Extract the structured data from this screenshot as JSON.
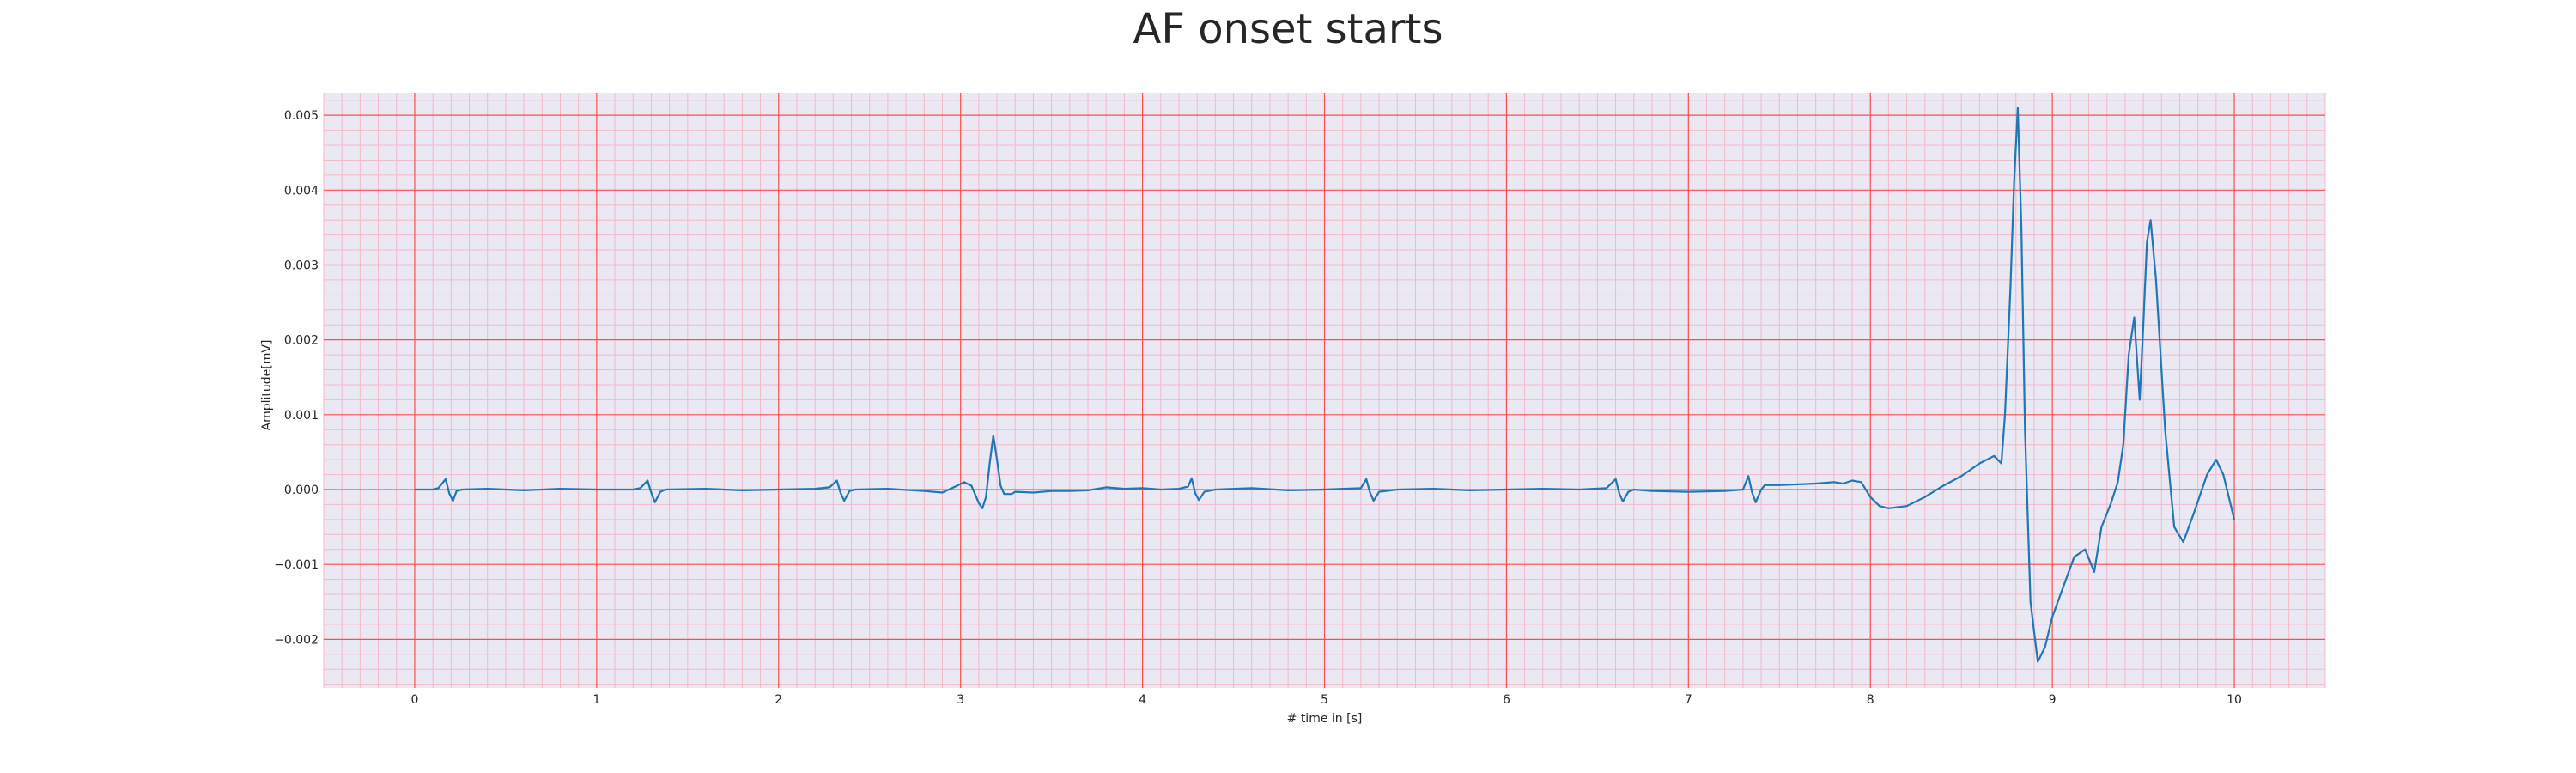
{
  "chart_data": {
    "type": "line",
    "title": "AF onset starts",
    "xlabel": "# time in [s]",
    "ylabel": "Amplitude[mV]",
    "xlim": [
      -0.5,
      10.5
    ],
    "ylim": [
      -0.00265,
      0.0053
    ],
    "x_ticks": [
      0,
      1,
      2,
      3,
      4,
      5,
      6,
      7,
      8,
      9,
      10
    ],
    "x_tick_labels": [
      "0",
      "1",
      "2",
      "3",
      "4",
      "5",
      "6",
      "7",
      "8",
      "9",
      "10"
    ],
    "y_ticks": [
      -0.002,
      -0.001,
      0.0,
      0.001,
      0.002,
      0.003,
      0.004,
      0.005
    ],
    "y_tick_labels": [
      "−0.002",
      "−0.001",
      "0.000",
      "0.001",
      "0.002",
      "0.003",
      "0.004",
      "0.005"
    ],
    "grid": {
      "major": true,
      "minor": true,
      "major_color": "#ff4d4d",
      "minor_color": "#f5b8c8"
    },
    "background": "#eae8f2",
    "series": [
      {
        "color": "#1f77b4",
        "points": [
          [
            0.0,
            0.0
          ],
          [
            0.1,
            0.0
          ],
          [
            0.13,
            2e-05
          ],
          [
            0.17,
            0.00014
          ],
          [
            0.19,
            -5e-05
          ],
          [
            0.21,
            -0.00015
          ],
          [
            0.23,
            -2e-05
          ],
          [
            0.26,
            0.0
          ],
          [
            0.4,
            1e-05
          ],
          [
            0.6,
            -1e-05
          ],
          [
            0.8,
            1e-05
          ],
          [
            1.0,
            0.0
          ],
          [
            1.2,
            0.0
          ],
          [
            1.24,
            2e-05
          ],
          [
            1.28,
            0.00012
          ],
          [
            1.3,
            -4e-05
          ],
          [
            1.32,
            -0.00017
          ],
          [
            1.35,
            -3e-05
          ],
          [
            1.38,
            0.0
          ],
          [
            1.6,
            1e-05
          ],
          [
            1.8,
            -1e-05
          ],
          [
            2.0,
            0.0
          ],
          [
            2.2,
            1e-05
          ],
          [
            2.28,
            3e-05
          ],
          [
            2.32,
            0.00012
          ],
          [
            2.34,
            -4e-05
          ],
          [
            2.36,
            -0.00015
          ],
          [
            2.39,
            -2e-05
          ],
          [
            2.42,
            0.0
          ],
          [
            2.6,
            1e-05
          ],
          [
            2.8,
            -2e-05
          ],
          [
            2.9,
            -4e-05
          ],
          [
            2.98,
            5e-05
          ],
          [
            3.02,
            0.0001
          ],
          [
            3.06,
            5e-05
          ],
          [
            3.1,
            -0.00018
          ],
          [
            3.12,
            -0.00025
          ],
          [
            3.14,
            -0.0001
          ],
          [
            3.16,
            0.00035
          ],
          [
            3.18,
            0.00072
          ],
          [
            3.2,
            0.0004
          ],
          [
            3.22,
            5e-05
          ],
          [
            3.24,
            -6e-05
          ],
          [
            3.28,
            -6e-05
          ],
          [
            3.3,
            -3e-05
          ],
          [
            3.4,
            -4e-05
          ],
          [
            3.5,
            -2e-05
          ],
          [
            3.6,
            -2e-05
          ],
          [
            3.7,
            -1e-05
          ],
          [
            3.8,
            3e-05
          ],
          [
            3.9,
            1e-05
          ],
          [
            4.0,
            2e-05
          ],
          [
            4.1,
            0.0
          ],
          [
            4.2,
            1e-05
          ],
          [
            4.25,
            4e-05
          ],
          [
            4.27,
            0.00015
          ],
          [
            4.29,
            -5e-05
          ],
          [
            4.31,
            -0.00014
          ],
          [
            4.34,
            -3e-05
          ],
          [
            4.4,
            0.0
          ],
          [
            4.6,
            2e-05
          ],
          [
            4.8,
            -1e-05
          ],
          [
            5.0,
            0.0
          ],
          [
            5.2,
            2e-05
          ],
          [
            5.23,
            0.00014
          ],
          [
            5.25,
            -4e-05
          ],
          [
            5.27,
            -0.00015
          ],
          [
            5.3,
            -3e-05
          ],
          [
            5.4,
            0.0
          ],
          [
            5.6,
            1e-05
          ],
          [
            5.8,
            -1e-05
          ],
          [
            6.0,
            0.0
          ],
          [
            6.2,
            1e-05
          ],
          [
            6.4,
            0.0
          ],
          [
            6.55,
            2e-05
          ],
          [
            6.6,
            0.00014
          ],
          [
            6.62,
            -5e-05
          ],
          [
            6.64,
            -0.00016
          ],
          [
            6.67,
            -3e-05
          ],
          [
            6.7,
            0.0
          ],
          [
            6.8,
            -2e-05
          ],
          [
            7.0,
            -3e-05
          ],
          [
            7.2,
            -2e-05
          ],
          [
            7.3,
            0.0
          ],
          [
            7.33,
            0.00018
          ],
          [
            7.35,
            -4e-05
          ],
          [
            7.37,
            -0.00017
          ],
          [
            7.4,
            0.0
          ],
          [
            7.42,
            6e-05
          ],
          [
            7.5,
            6e-05
          ],
          [
            7.7,
            8e-05
          ],
          [
            7.8,
            0.0001
          ],
          [
            7.85,
            8e-05
          ],
          [
            7.9,
            0.00012
          ],
          [
            7.95,
            0.0001
          ],
          [
            8.0,
            -0.0001
          ],
          [
            8.05,
            -0.00022
          ],
          [
            8.1,
            -0.00025
          ],
          [
            8.2,
            -0.00022
          ],
          [
            8.3,
            -0.0001
          ],
          [
            8.4,
            5e-05
          ],
          [
            8.5,
            0.00018
          ],
          [
            8.6,
            0.00035
          ],
          [
            8.68,
            0.00045
          ],
          [
            8.72,
            0.00035
          ],
          [
            8.74,
            0.001
          ],
          [
            8.77,
            0.0027
          ],
          [
            8.79,
            0.0041
          ],
          [
            8.81,
            0.0051
          ],
          [
            8.83,
            0.0035
          ],
          [
            8.85,
            0.0008
          ],
          [
            8.88,
            -0.0015
          ],
          [
            8.92,
            -0.0023
          ],
          [
            8.96,
            -0.0021
          ],
          [
            9.0,
            -0.0017
          ],
          [
            9.06,
            -0.0013
          ],
          [
            9.12,
            -0.0009
          ],
          [
            9.18,
            -0.0008
          ],
          [
            9.23,
            -0.0011
          ],
          [
            9.27,
            -0.0005
          ],
          [
            9.32,
            -0.0002
          ],
          [
            9.36,
            0.0001
          ],
          [
            9.39,
            0.0006
          ],
          [
            9.42,
            0.0018
          ],
          [
            9.45,
            0.0023
          ],
          [
            9.48,
            0.0012
          ],
          [
            9.5,
            0.0022
          ],
          [
            9.52,
            0.0033
          ],
          [
            9.54,
            0.0036
          ],
          [
            9.57,
            0.0028
          ],
          [
            9.62,
            0.0008
          ],
          [
            9.67,
            -0.0005
          ],
          [
            9.72,
            -0.0007
          ],
          [
            9.78,
            -0.0003
          ],
          [
            9.85,
            0.0002
          ],
          [
            9.9,
            0.0004
          ],
          [
            9.94,
            0.0002
          ],
          [
            10.0,
            -0.0004
          ]
        ]
      }
    ]
  }
}
